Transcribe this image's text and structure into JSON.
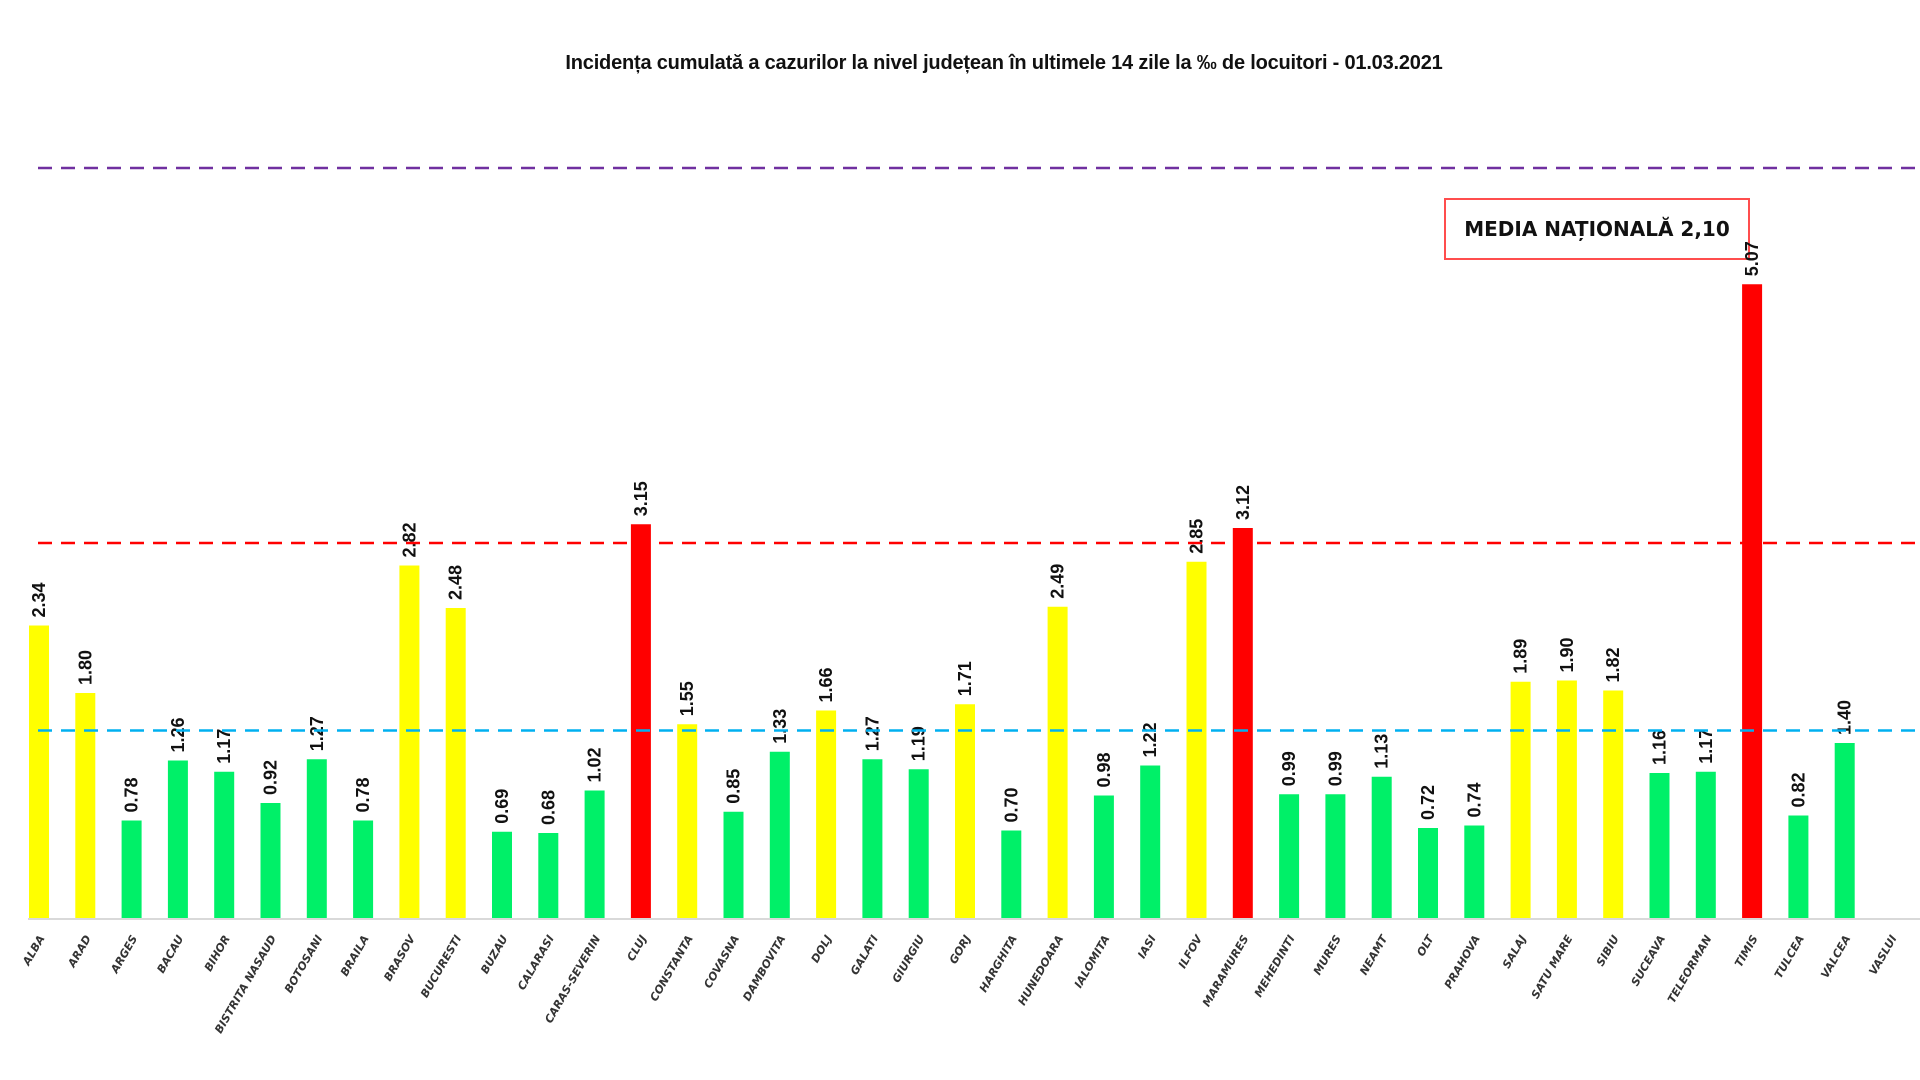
{
  "chart_data": {
    "type": "bar",
    "title": "Incidența cumulată a cazurilor la nivel județean în ultimele 14 zile la ‰ de locuitori - 01.03.2021",
    "annotation": "MEDIA NAȚIONALĂ 2,10",
    "categories": [
      "ALBA",
      "ARAD",
      "ARGES",
      "BACAU",
      "BIHOR",
      "BISTRITA NASAUD",
      "BOTOSANI",
      "BRAILA",
      "BRASOV",
      "BUCURESTI",
      "BUZAU",
      "CALARASI",
      "CARAS-SEVERIN",
      "CLUJ",
      "CONSTANTA",
      "COVASNA",
      "DAMBOVITA",
      "DOLJ",
      "GALATI",
      "GIURGIU",
      "GORJ",
      "HARGHITA",
      "HUNEDOARA",
      "IALOMITA",
      "IASI",
      "ILFOV",
      "MARAMURES",
      "MEHEDINTI",
      "MURES",
      "NEAMT",
      "OLT",
      "PRAHOVA",
      "SALAJ",
      "SATU MARE",
      "SIBIU",
      "SUCEAVA",
      "TELEORMAN",
      "TIMIS",
      "TULCEA",
      "VALCEA",
      "VASLUI"
    ],
    "values": [
      2.34,
      1.8,
      0.78,
      1.26,
      1.17,
      0.92,
      1.27,
      0.78,
      2.82,
      2.48,
      0.69,
      0.68,
      1.02,
      3.15,
      1.55,
      0.85,
      1.33,
      1.66,
      1.27,
      1.19,
      1.71,
      0.7,
      2.49,
      0.98,
      1.22,
      2.85,
      3.12,
      0.99,
      0.99,
      1.13,
      0.72,
      0.74,
      1.89,
      1.9,
      1.82,
      1.16,
      1.17,
      5.07,
      0.82,
      1.4,
      null
    ],
    "reference_lines": [
      {
        "value": 6,
        "color": "#7030A0",
        "style": "dashed"
      },
      {
        "value": 3,
        "color": "#FF0000",
        "style": "dashed"
      },
      {
        "value": 1.5,
        "color": "#00B0F0",
        "style": "dashed"
      }
    ],
    "color_scale": [
      {
        "min": 3,
        "color": "#FF0000"
      },
      {
        "min": 1.5,
        "color": "#FFFF00"
      },
      {
        "min": 0,
        "color": "#00F068"
      }
    ],
    "ylim": [
      0,
      6.2
    ],
    "grid": false,
    "legend": "none",
    "xlabel": "",
    "ylabel": ""
  }
}
